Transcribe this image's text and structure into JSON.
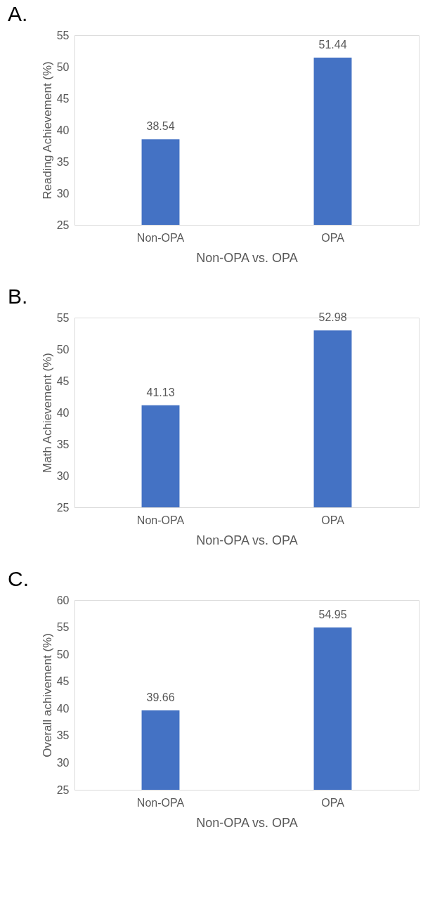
{
  "chart_data": [
    {
      "type": "bar",
      "title": "A.",
      "categories": [
        "Non-OPA",
        "OPA"
      ],
      "values": [
        38.54,
        51.44
      ],
      "color": "#4472c4",
      "xlabel": "Non-OPA vs. OPA",
      "ylabel": "Reading Achievement (%)",
      "ylim": [
        25,
        55
      ],
      "yticks": [
        25,
        30,
        35,
        40,
        45,
        50,
        55
      ],
      "data_labels": true
    },
    {
      "type": "bar",
      "title": "B.",
      "categories": [
        "Non-OPA",
        "OPA"
      ],
      "values": [
        41.13,
        52.98
      ],
      "color": "#4472c4",
      "xlabel": "Non-OPA vs. OPA",
      "ylabel": "Math Achievement (%)",
      "ylim": [
        25,
        55
      ],
      "yticks": [
        25,
        30,
        35,
        40,
        45,
        50,
        55
      ],
      "data_labels": true
    },
    {
      "type": "bar",
      "title": "C.",
      "categories": [
        "Non-OPA",
        "OPA"
      ],
      "values": [
        39.66,
        54.95
      ],
      "color": "#4472c4",
      "xlabel": "Non-OPA vs. OPA",
      "ylabel": "Overall achivement (%)",
      "ylim": [
        25,
        60
      ],
      "yticks": [
        25,
        30,
        35,
        40,
        45,
        50,
        55,
        60
      ],
      "data_labels": true
    }
  ]
}
